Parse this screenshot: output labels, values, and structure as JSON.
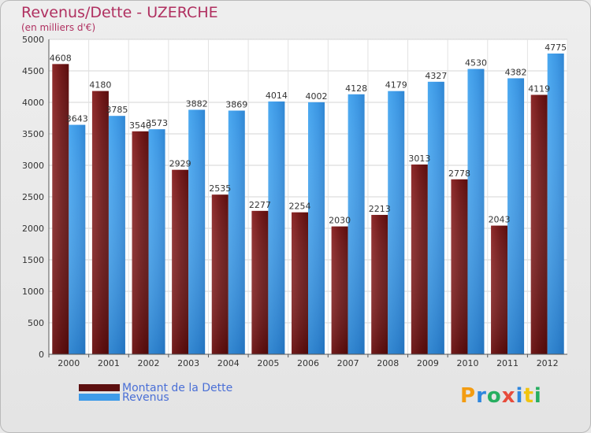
{
  "title": "Revenus/Dette - UZERCHE",
  "subtitle": "(en milliers d'€)",
  "logo": {
    "text": "Proxiti",
    "letters": [
      {
        "ch": "P",
        "color": "#f39c12"
      },
      {
        "ch": "r",
        "color": "#2e86de"
      },
      {
        "ch": "o",
        "color": "#27ae60"
      },
      {
        "ch": "x",
        "color": "#e74c3c"
      },
      {
        "ch": "i",
        "color": "#2e86de"
      },
      {
        "ch": "t",
        "color": "#f1c40f"
      },
      {
        "ch": "i",
        "color": "#27ae60"
      }
    ]
  },
  "chart_data": {
    "type": "bar",
    "title": "Revenus/Dette - UZERCHE",
    "subtitle": "(en milliers d'€)",
    "categories": [
      "2000",
      "2001",
      "2002",
      "2003",
      "2004",
      "2005",
      "2006",
      "2007",
      "2008",
      "2009",
      "2010",
      "2011",
      "2012"
    ],
    "series": [
      {
        "name": "Montant de la Dette",
        "color": "#7a1a1a",
        "values": [
          4608,
          4180,
          3540,
          2929,
          2535,
          2277,
          2254,
          2030,
          2213,
          3013,
          2778,
          2043,
          4119
        ]
      },
      {
        "name": "Revenus",
        "color": "#3f9be8",
        "values": [
          3643,
          3785,
          3573,
          3882,
          3869,
          4014,
          4002,
          4128,
          4179,
          4327,
          4530,
          4382,
          4775
        ]
      }
    ],
    "yticks": [
      "0",
      "500",
      "1000",
      "1500",
      "2000",
      "2500",
      "3000",
      "3500",
      "4000",
      "4500",
      "5000"
    ],
    "ylim": [
      0,
      5000
    ],
    "grid": true,
    "legend_position": "bottom-left"
  }
}
